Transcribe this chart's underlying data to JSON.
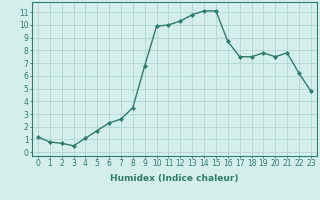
{
  "x": [
    0,
    1,
    2,
    3,
    4,
    5,
    6,
    7,
    8,
    9,
    10,
    11,
    12,
    13,
    14,
    15,
    16,
    17,
    18,
    19,
    20,
    21,
    22,
    23
  ],
  "y": [
    1.2,
    0.8,
    0.7,
    0.5,
    1.1,
    1.7,
    2.3,
    2.6,
    3.5,
    6.8,
    9.9,
    10.0,
    10.3,
    10.8,
    11.1,
    11.1,
    8.7,
    7.5,
    7.5,
    7.8,
    7.5,
    7.8,
    6.2,
    4.8
  ],
  "line_color": "#2e7d6e",
  "marker": "D",
  "marker_size": 2.0,
  "line_width": 1.0,
  "bg_color": "#d4eeeb",
  "grid_color": "#aad4cf",
  "xlabel": "Humidex (Indice chaleur)",
  "yticks": [
    0,
    1,
    2,
    3,
    4,
    5,
    6,
    7,
    8,
    9,
    10,
    11
  ],
  "xlim": [
    -0.5,
    23.5
  ],
  "ylim": [
    -0.3,
    11.8
  ],
  "xlabel_fontsize": 6.5,
  "tick_fontsize": 5.5,
  "tick_color": "#2e7d6e",
  "axis_color": "#2e7d6e"
}
